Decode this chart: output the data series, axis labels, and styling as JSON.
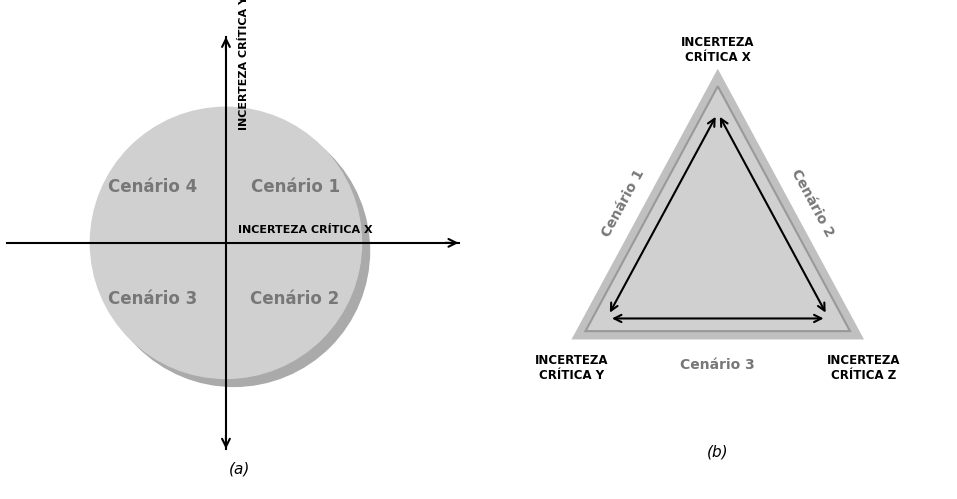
{
  "fig_width": 9.57,
  "fig_height": 4.99,
  "bg_color": "#ffffff",
  "circle_fill": "#d0d0d0",
  "circle_shadow_fill": "#aaaaaa",
  "triangle_fill": "#d0d0d0",
  "triangle_shadow_fill": "#aaaaaa",
  "quadrant_labels": [
    "Cenário 1",
    "Cenário 2",
    "Cenário 3",
    "Cenário 4"
  ],
  "triangle_edge_labels": [
    "Cenário 1",
    "Cenário 2",
    "Cenário 3"
  ],
  "axis_label_x": "INCERTEZA CRÍTICA X",
  "axis_label_y": "INCERTEZA CRÍTICA Y",
  "triangle_top_label": "INCERTEZA\nCRÍTICA X",
  "triangle_bl_label": "INCERTEZA\nCRÍTICA Y",
  "triangle_br_label": "INCERTEZA\nCRÍTICA Z",
  "caption_a": "(a)",
  "caption_b": "(b)",
  "label_color": "#777777",
  "axis_label_color": "#000000",
  "bold_label_color": "#000000"
}
